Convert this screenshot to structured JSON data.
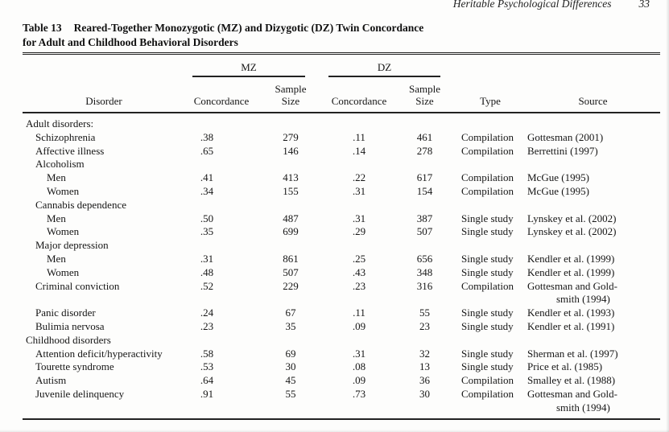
{
  "page": {
    "running_title": "Heritable Psychological Differences",
    "page_number": "33"
  },
  "table": {
    "label": "Table 13",
    "title_line1": "Reared-Together Monozygotic (MZ) and Dizygotic (DZ) Twin Concordance",
    "title_line2": "for Adult and Childhood Behavioral Disorders",
    "header": {
      "disorder": "Disorder",
      "group_mz": "MZ",
      "group_dz": "DZ",
      "concordance": "Concordance",
      "sample": "Sample",
      "size": "Size",
      "type": "Type",
      "source": "Source"
    },
    "rows": [
      {
        "disorder": "Adult disorders:",
        "indent": 0,
        "mz_concordance": "",
        "mz_sample_size": "",
        "dz_concordance": "",
        "dz_sample_size": "",
        "type": "",
        "source_lines": []
      },
      {
        "disorder": "Schizophrenia",
        "indent": 1,
        "mz_concordance": ".38",
        "mz_sample_size": "279",
        "dz_concordance": ".11",
        "dz_sample_size": "461",
        "type": "Compilation",
        "source_lines": [
          "Gottesman (2001)"
        ]
      },
      {
        "disorder": "Affective illness",
        "indent": 1,
        "mz_concordance": ".65",
        "mz_sample_size": "146",
        "dz_concordance": ".14",
        "dz_sample_size": "278",
        "type": "Compilation",
        "source_lines": [
          "Berrettini (1997)"
        ]
      },
      {
        "disorder": "Alcoholism",
        "indent": 1,
        "mz_concordance": "",
        "mz_sample_size": "",
        "dz_concordance": "",
        "dz_sample_size": "",
        "type": "",
        "source_lines": []
      },
      {
        "disorder": "Men",
        "indent": 2,
        "mz_concordance": ".41",
        "mz_sample_size": "413",
        "dz_concordance": ".22",
        "dz_sample_size": "617",
        "type": "Compilation",
        "source_lines": [
          "McGue (1995)"
        ]
      },
      {
        "disorder": "Women",
        "indent": 2,
        "mz_concordance": ".34",
        "mz_sample_size": "155",
        "dz_concordance": ".31",
        "dz_sample_size": "154",
        "type": "Compilation",
        "source_lines": [
          "McGue (1995)"
        ]
      },
      {
        "disorder": "Cannabis dependence",
        "indent": 1,
        "mz_concordance": "",
        "mz_sample_size": "",
        "dz_concordance": "",
        "dz_sample_size": "",
        "type": "",
        "source_lines": []
      },
      {
        "disorder": "Men",
        "indent": 2,
        "mz_concordance": ".50",
        "mz_sample_size": "487",
        "dz_concordance": ".31",
        "dz_sample_size": "387",
        "type": "Single study",
        "source_lines": [
          "Lynskey et al. (2002)"
        ]
      },
      {
        "disorder": "Women",
        "indent": 2,
        "mz_concordance": ".35",
        "mz_sample_size": "699",
        "dz_concordance": ".29",
        "dz_sample_size": "507",
        "type": "Single study",
        "source_lines": [
          "Lynskey et al. (2002)"
        ]
      },
      {
        "disorder": "Major depression",
        "indent": 1,
        "mz_concordance": "",
        "mz_sample_size": "",
        "dz_concordance": "",
        "dz_sample_size": "",
        "type": "",
        "source_lines": []
      },
      {
        "disorder": "Men",
        "indent": 2,
        "mz_concordance": ".31",
        "mz_sample_size": "861",
        "dz_concordance": ".25",
        "dz_sample_size": "656",
        "type": "Single study",
        "source_lines": [
          "Kendler et al. (1999)"
        ]
      },
      {
        "disorder": "Women",
        "indent": 2,
        "mz_concordance": ".48",
        "mz_sample_size": "507",
        "dz_concordance": ".43",
        "dz_sample_size": "348",
        "type": "Single study",
        "source_lines": [
          "Kendler et al. (1999)"
        ]
      },
      {
        "disorder": "Criminal conviction",
        "indent": 1,
        "mz_concordance": ".52",
        "mz_sample_size": "229",
        "dz_concordance": ".23",
        "dz_sample_size": "316",
        "type": "Compilation",
        "source_lines": [
          "Gottesman and Gold-",
          "smith (1994)"
        ]
      },
      {
        "disorder": "Panic disorder",
        "indent": 1,
        "mz_concordance": ".24",
        "mz_sample_size": "67",
        "dz_concordance": ".11",
        "dz_sample_size": "55",
        "type": "Single study",
        "source_lines": [
          "Kendler et al. (1993)"
        ]
      },
      {
        "disorder": "Bulimia nervosa",
        "indent": 1,
        "mz_concordance": ".23",
        "mz_sample_size": "35",
        "dz_concordance": ".09",
        "dz_sample_size": "23",
        "type": "Single study",
        "source_lines": [
          "Kendler et al. (1991)"
        ]
      },
      {
        "disorder": "Childhood disorders",
        "indent": 0,
        "mz_concordance": "",
        "mz_sample_size": "",
        "dz_concordance": "",
        "dz_sample_size": "",
        "type": "",
        "source_lines": []
      },
      {
        "disorder": "Attention deficit/hyperactivity",
        "indent": 1,
        "mz_concordance": ".58",
        "mz_sample_size": "69",
        "dz_concordance": ".31",
        "dz_sample_size": "32",
        "type": "Single study",
        "source_lines": [
          "Sherman et al. (1997)"
        ]
      },
      {
        "disorder": "Tourette syndrome",
        "indent": 1,
        "mz_concordance": ".53",
        "mz_sample_size": "30",
        "dz_concordance": ".08",
        "dz_sample_size": "13",
        "type": "Single study",
        "source_lines": [
          "Price et al. (1985)"
        ]
      },
      {
        "disorder": "Autism",
        "indent": 1,
        "mz_concordance": ".64",
        "mz_sample_size": "45",
        "dz_concordance": ".09",
        "dz_sample_size": "36",
        "type": "Compilation",
        "source_lines": [
          "Smalley et al. (1988)"
        ]
      },
      {
        "disorder": "Juvenile delinquency",
        "indent": 1,
        "mz_concordance": ".91",
        "mz_sample_size": "55",
        "dz_concordance": ".73",
        "dz_sample_size": "30",
        "type": "Compilation",
        "source_lines": [
          "Gottesman and Gold-",
          "smith (1994)"
        ]
      }
    ]
  }
}
